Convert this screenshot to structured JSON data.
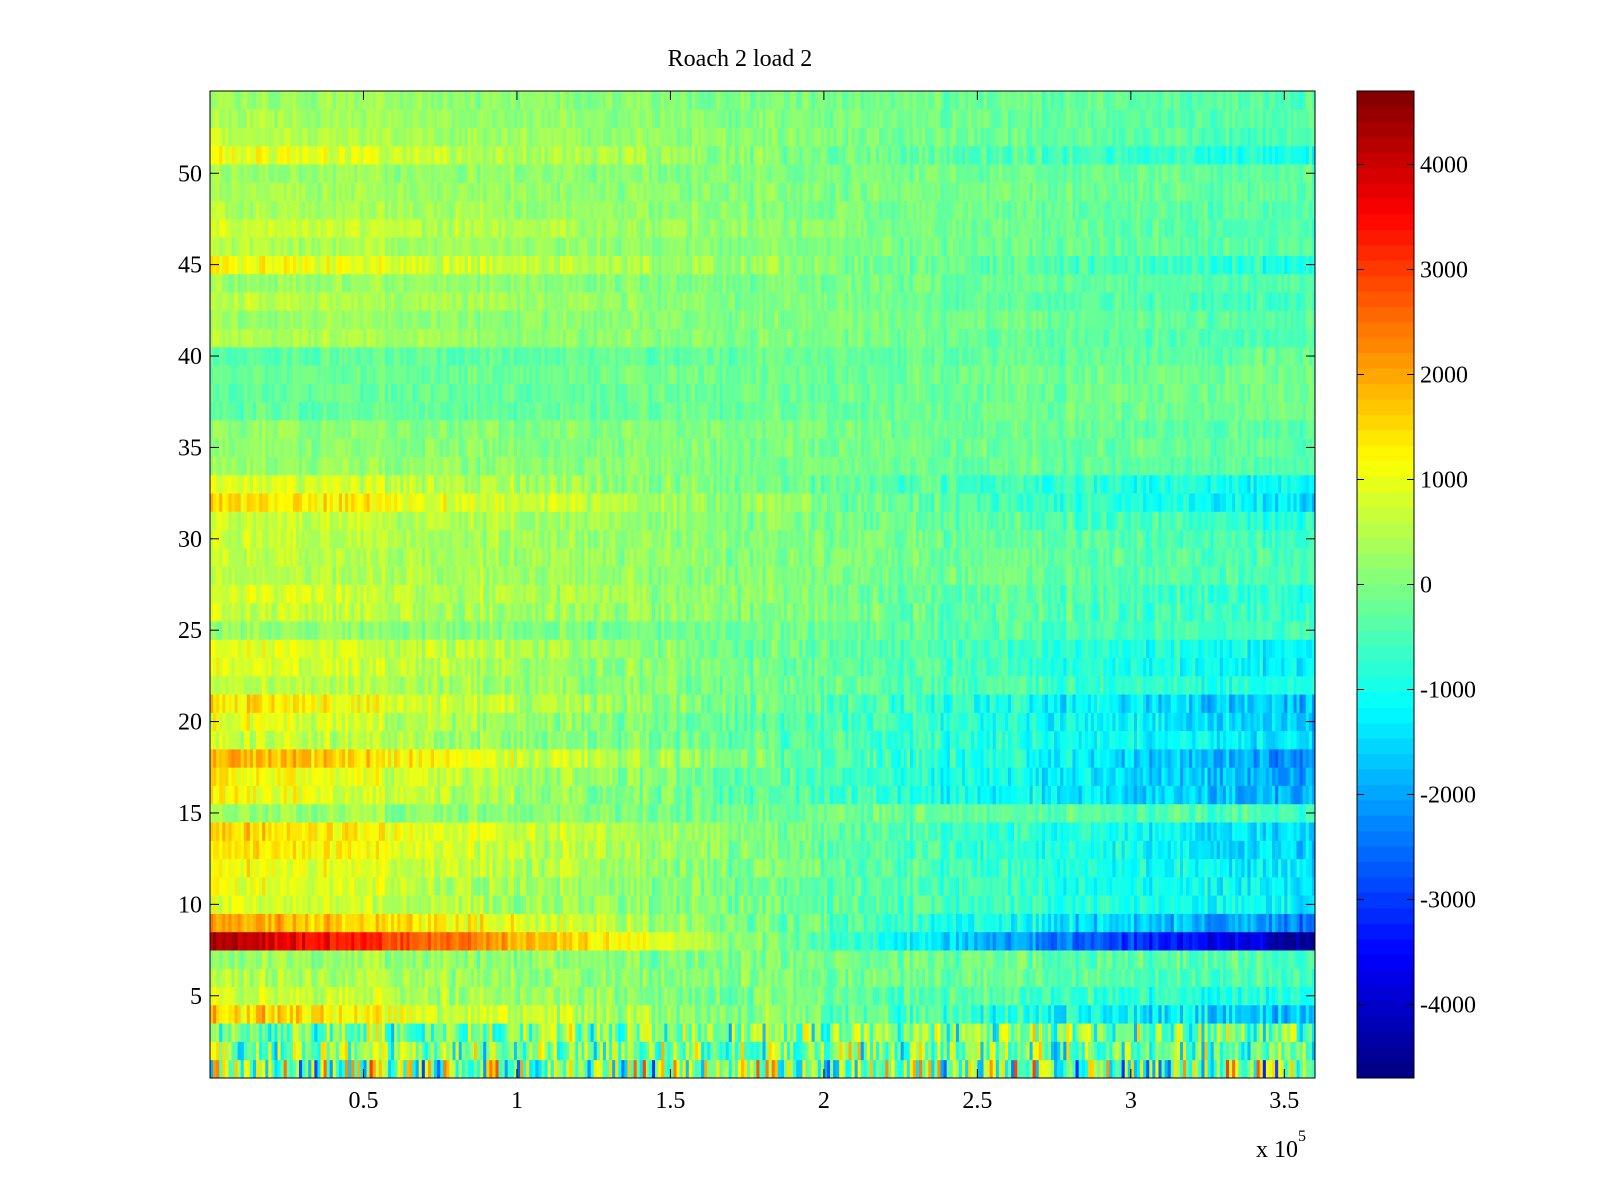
{
  "chart_data": {
    "type": "heatmap",
    "title": "Roach 2 load 2",
    "xlabel": "",
    "ylabel": "",
    "x_exponent_label": "x 10",
    "x_exponent_power": "5",
    "xlim": [
      0,
      3.6
    ],
    "ylim": [
      0.5,
      54.5
    ],
    "x_ticks": [
      0.5,
      1,
      1.5,
      2,
      2.5,
      3,
      3.5
    ],
    "x_tick_labels": [
      "0.5",
      "1",
      "1.5",
      "2",
      "2.5",
      "3",
      "3.5"
    ],
    "y_ticks": [
      5,
      10,
      15,
      20,
      25,
      30,
      35,
      40,
      45,
      50
    ],
    "y_tick_labels": [
      "5",
      "10",
      "15",
      "20",
      "25",
      "30",
      "35",
      "40",
      "45",
      "50"
    ],
    "colormap": "jet",
    "clim": [
      -4700,
      4700
    ],
    "colorbar_ticks": [
      4000,
      3000,
      2000,
      1000,
      0,
      -1000,
      -2000,
      -3000,
      -4000
    ],
    "colorbar_tick_labels": [
      "4000",
      "3000",
      "2000",
      "1000",
      "0",
      "-1000",
      "-2000",
      "-3000",
      "-4000"
    ],
    "rows": 54,
    "row_trends": [
      {
        "row": 1,
        "start": 0,
        "end": 0,
        "noise": 2200
      },
      {
        "row": 2,
        "start": 0,
        "end": -200,
        "noise": 1500
      },
      {
        "row": 3,
        "start": -200,
        "end": 0,
        "noise": 1300
      },
      {
        "row": 4,
        "start": 1700,
        "end": -1800,
        "noise": 600
      },
      {
        "row": 5,
        "start": 800,
        "end": -1000,
        "noise": 500
      },
      {
        "row": 6,
        "start": 500,
        "end": -500,
        "noise": 450
      },
      {
        "row": 7,
        "start": 300,
        "end": -400,
        "noise": 450
      },
      {
        "row": 8,
        "start": 4400,
        "end": -4400,
        "noise": 400
      },
      {
        "row": 9,
        "start": 2200,
        "end": -2400,
        "noise": 500
      },
      {
        "row": 10,
        "start": 900,
        "end": -1200,
        "noise": 450
      },
      {
        "row": 11,
        "start": 1000,
        "end": -1300,
        "noise": 450
      },
      {
        "row": 12,
        "start": 1200,
        "end": -1400,
        "noise": 450
      },
      {
        "row": 13,
        "start": 1500,
        "end": -1600,
        "noise": 450
      },
      {
        "row": 14,
        "start": 1600,
        "end": -1600,
        "noise": 450
      },
      {
        "row": 15,
        "start": 300,
        "end": -500,
        "noise": 400
      },
      {
        "row": 16,
        "start": 1200,
        "end": -2000,
        "noise": 450
      },
      {
        "row": 17,
        "start": 1300,
        "end": -2000,
        "noise": 450
      },
      {
        "row": 18,
        "start": 2000,
        "end": -2200,
        "noise": 500
      },
      {
        "row": 19,
        "start": 800,
        "end": -1500,
        "noise": 450
      },
      {
        "row": 20,
        "start": 1000,
        "end": -1700,
        "noise": 450
      },
      {
        "row": 21,
        "start": 1500,
        "end": -1900,
        "noise": 500
      },
      {
        "row": 22,
        "start": 700,
        "end": -1000,
        "noise": 400
      },
      {
        "row": 23,
        "start": 1000,
        "end": -1300,
        "noise": 400
      },
      {
        "row": 24,
        "start": 1100,
        "end": -1300,
        "noise": 400
      },
      {
        "row": 25,
        "start": 200,
        "end": -600,
        "noise": 350
      },
      {
        "row": 26,
        "start": 700,
        "end": -700,
        "noise": 400
      },
      {
        "row": 27,
        "start": 900,
        "end": -800,
        "noise": 400
      },
      {
        "row": 28,
        "start": 600,
        "end": -500,
        "noise": 350
      },
      {
        "row": 29,
        "start": 600,
        "end": -500,
        "noise": 350
      },
      {
        "row": 30,
        "start": 700,
        "end": -600,
        "noise": 350
      },
      {
        "row": 31,
        "start": 800,
        "end": -800,
        "noise": 400
      },
      {
        "row": 32,
        "start": 1600,
        "end": -1400,
        "noise": 450
      },
      {
        "row": 33,
        "start": 1000,
        "end": -1200,
        "noise": 400
      },
      {
        "row": 34,
        "start": 300,
        "end": -400,
        "noise": 300
      },
      {
        "row": 35,
        "start": 200,
        "end": -300,
        "noise": 300
      },
      {
        "row": 36,
        "start": 200,
        "end": -300,
        "noise": 300
      },
      {
        "row": 37,
        "start": -300,
        "end": -100,
        "noise": 300
      },
      {
        "row": 38,
        "start": -300,
        "end": -100,
        "noise": 300
      },
      {
        "row": 39,
        "start": -200,
        "end": -100,
        "noise": 300
      },
      {
        "row": 40,
        "start": -300,
        "end": -200,
        "noise": 300
      },
      {
        "row": 41,
        "start": 500,
        "end": -500,
        "noise": 300
      },
      {
        "row": 42,
        "start": 300,
        "end": -300,
        "noise": 300
      },
      {
        "row": 43,
        "start": 600,
        "end": -600,
        "noise": 300
      },
      {
        "row": 44,
        "start": 300,
        "end": -400,
        "noise": 300
      },
      {
        "row": 45,
        "start": 1200,
        "end": -900,
        "noise": 400
      },
      {
        "row": 46,
        "start": 500,
        "end": -400,
        "noise": 300
      },
      {
        "row": 47,
        "start": 800,
        "end": -500,
        "noise": 300
      },
      {
        "row": 48,
        "start": 500,
        "end": -400,
        "noise": 300
      },
      {
        "row": 49,
        "start": 400,
        "end": -300,
        "noise": 300
      },
      {
        "row": 50,
        "start": 300,
        "end": -300,
        "noise": 300
      },
      {
        "row": 51,
        "start": 1100,
        "end": -1000,
        "noise": 400
      },
      {
        "row": 52,
        "start": 600,
        "end": -500,
        "noise": 300
      },
      {
        "row": 53,
        "start": 400,
        "end": -400,
        "noise": 300
      },
      {
        "row": 54,
        "start": 300,
        "end": -400,
        "noise": 300
      }
    ]
  }
}
